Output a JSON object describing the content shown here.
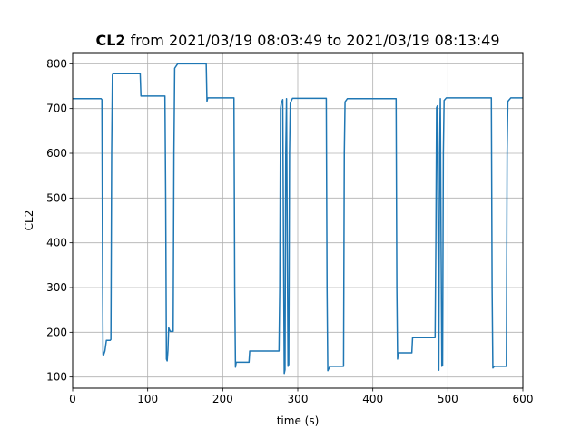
{
  "chart_data": {
    "type": "line",
    "title_bold": "CL2",
    "title_rest": " from 2021/03/19 08:03:49 to 2021/03/19 08:13:49",
    "xlabel": "time (s)",
    "ylabel": "CL2",
    "xlim": [
      0,
      600
    ],
    "ylim": [
      75,
      825
    ],
    "xticks": [
      0,
      100,
      200,
      300,
      400,
      500,
      600
    ],
    "yticks": [
      100,
      200,
      300,
      400,
      500,
      600,
      700,
      800
    ],
    "grid": true,
    "series": [
      {
        "color": "#1f77b4",
        "points": [
          [
            0,
            722
          ],
          [
            38,
            722
          ],
          [
            39,
            720
          ],
          [
            40,
            300
          ],
          [
            40.5,
            150
          ],
          [
            41,
            148
          ],
          [
            43,
            158
          ],
          [
            45,
            182
          ],
          [
            50,
            182
          ],
          [
            51,
            184
          ],
          [
            52,
            600
          ],
          [
            53,
            775
          ],
          [
            54,
            778
          ],
          [
            90,
            778
          ],
          [
            91,
            728
          ],
          [
            123,
            728
          ],
          [
            124,
            500
          ],
          [
            125,
            140
          ],
          [
            126,
            136
          ],
          [
            127,
            160
          ],
          [
            128,
            210
          ],
          [
            130,
            202
          ],
          [
            134,
            202
          ],
          [
            135,
            600
          ],
          [
            136,
            790
          ],
          [
            140,
            800
          ],
          [
            178,
            800
          ],
          [
            179,
            716
          ],
          [
            180,
            724
          ],
          [
            215,
            724
          ],
          [
            216,
            300
          ],
          [
            217,
            122
          ],
          [
            218,
            133
          ],
          [
            235,
            133
          ],
          [
            236,
            158
          ],
          [
            275,
            158
          ],
          [
            276,
            300
          ],
          [
            277,
            700
          ],
          [
            278,
            712
          ],
          [
            280,
            720
          ],
          [
            281,
            400
          ],
          [
            282,
            108
          ],
          [
            283,
            116
          ],
          [
            284,
            600
          ],
          [
            285,
            722
          ],
          [
            286,
            400
          ],
          [
            287,
            124
          ],
          [
            288,
            128
          ],
          [
            289,
            600
          ],
          [
            290,
            712
          ],
          [
            293,
            723
          ],
          [
            338,
            723
          ],
          [
            339,
            300
          ],
          [
            340,
            114
          ],
          [
            343,
            124
          ],
          [
            361,
            124
          ],
          [
            362,
            600
          ],
          [
            363,
            715
          ],
          [
            366,
            722
          ],
          [
            431,
            722
          ],
          [
            432,
            300
          ],
          [
            433,
            140
          ],
          [
            434,
            154
          ],
          [
            452,
            154
          ],
          [
            453,
            188
          ],
          [
            483,
            188
          ],
          [
            484,
            400
          ],
          [
            485,
            702
          ],
          [
            486,
            706
          ],
          [
            487,
            400
          ],
          [
            488,
            115
          ],
          [
            489,
            600
          ],
          [
            490,
            722
          ],
          [
            491,
            400
          ],
          [
            492,
            124
          ],
          [
            493,
            126
          ],
          [
            494,
            600
          ],
          [
            495,
            718
          ],
          [
            498,
            724
          ],
          [
            558,
            724
          ],
          [
            559,
            300
          ],
          [
            560,
            120
          ],
          [
            562,
            124
          ],
          [
            578,
            124
          ],
          [
            579,
            600
          ],
          [
            580,
            716
          ],
          [
            584,
            724
          ],
          [
            600,
            724
          ]
        ]
      }
    ]
  }
}
